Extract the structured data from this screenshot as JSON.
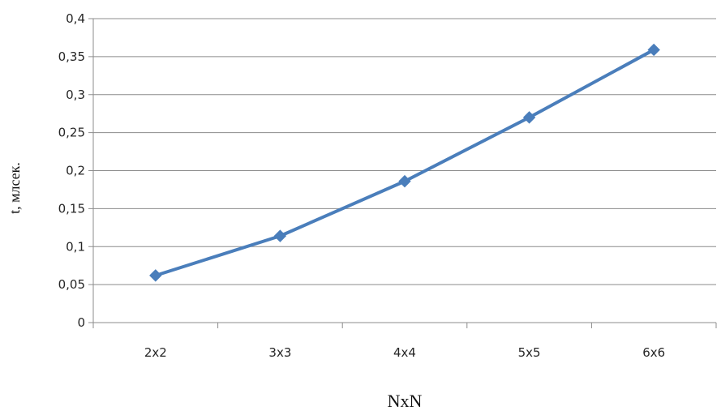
{
  "chart_data": {
    "type": "line",
    "title": "",
    "xlabel": "NxN",
    "ylabel": "t, млсек.",
    "categories": [
      "2x2",
      "3x3",
      "4x4",
      "5x5",
      "6x6"
    ],
    "series": [
      {
        "values": [
          0.062,
          0.114,
          0.186,
          0.27,
          0.359
        ]
      }
    ],
    "ylim": [
      0,
      0.4
    ],
    "yticks": [
      "0",
      "0,05",
      "0,1",
      "0,15",
      "0,2",
      "0,25",
      "0,3",
      "0,35",
      "0,4"
    ],
    "grid": "horizontal",
    "legend": "none",
    "marker": "diamond",
    "colors": {
      "series": "#4a7ebb",
      "grid": "#8c8c8c",
      "axis": "#8c8c8c"
    }
  }
}
